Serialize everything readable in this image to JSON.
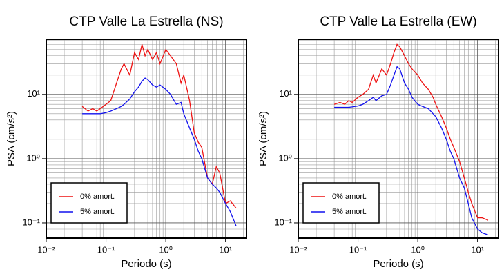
{
  "chart_data": [
    {
      "type": "line",
      "title": "CTP Valle La Estrella (NS)",
      "x_label": "Periodo (s)",
      "y_label": "PSA (cm/s²)",
      "xscale": "log",
      "yscale": "log",
      "grid": true,
      "minor_grid": true,
      "legend": "lower left",
      "xlim": [
        0.01,
        22.4
      ],
      "ylim": [
        0.058,
        72
      ],
      "xticks": [
        {
          "value": 0.01,
          "label": "10⁻²"
        },
        {
          "value": 0.1,
          "label": "10⁻¹"
        },
        {
          "value": 1,
          "label": "10⁰"
        },
        {
          "value": 10,
          "label": "10¹"
        }
      ],
      "yticks": [
        {
          "value": 0.1,
          "label": "10⁻¹"
        },
        {
          "value": 1,
          "label": "10⁰"
        },
        {
          "value": 10,
          "label": "10¹"
        }
      ],
      "x": [
        0.04,
        0.05,
        0.06,
        0.07,
        0.08,
        0.1,
        0.12,
        0.15,
        0.18,
        0.2,
        0.25,
        0.3,
        0.35,
        0.4,
        0.45,
        0.5,
        0.6,
        0.7,
        0.8,
        1,
        1.2,
        1.5,
        1.8,
        2,
        2.5,
        3,
        3.5,
        4,
        5,
        6,
        7,
        8,
        10,
        12,
        15
      ],
      "series": [
        {
          "name": "0% amort.",
          "color": "#ee1111",
          "values": [
            6.5,
            5.5,
            6,
            5.5,
            6,
            7,
            8,
            15,
            25,
            30,
            20,
            45,
            35,
            60,
            40,
            50,
            35,
            45,
            30,
            50,
            40,
            30,
            15,
            20,
            8,
            2.5,
            1.8,
            1.5,
            0.5,
            0.4,
            0.75,
            0.6,
            0.2,
            0.22,
            0.17
          ]
        },
        {
          "name": "5% amort.",
          "color": "#1111ee",
          "values": [
            5,
            5,
            5,
            5,
            5,
            5.2,
            5.5,
            6,
            6.5,
            7,
            8.5,
            11,
            13,
            16,
            18,
            17,
            14,
            13,
            14,
            12,
            10,
            7,
            7.5,
            5,
            3,
            2,
            1.3,
            1,
            0.5,
            0.4,
            0.35,
            0.3,
            0.2,
            0.15,
            0.09
          ]
        }
      ]
    },
    {
      "type": "line",
      "title": "CTP Valle La Estrella (EW)",
      "x_label": "Periodo (s)",
      "y_label": "PSA (cm/s²)",
      "xscale": "log",
      "yscale": "log",
      "grid": true,
      "minor_grid": true,
      "legend": "lower left",
      "xlim": [
        0.01,
        22.4
      ],
      "ylim": [
        0.058,
        72
      ],
      "xticks": [
        {
          "value": 0.01,
          "label": "10⁻²"
        },
        {
          "value": 0.1,
          "label": "10⁻¹"
        },
        {
          "value": 1,
          "label": "10⁰"
        },
        {
          "value": 10,
          "label": "10¹"
        }
      ],
      "yticks": [
        {
          "value": 0.1,
          "label": "10⁻¹"
        },
        {
          "value": 1,
          "label": "10⁰"
        },
        {
          "value": 10,
          "label": "10¹"
        }
      ],
      "x": [
        0.04,
        0.05,
        0.06,
        0.07,
        0.08,
        0.1,
        0.12,
        0.15,
        0.18,
        0.2,
        0.25,
        0.3,
        0.35,
        0.4,
        0.45,
        0.5,
        0.6,
        0.7,
        0.8,
        1,
        1.2,
        1.5,
        1.8,
        2,
        2.5,
        3,
        3.5,
        4,
        5,
        6,
        7,
        8,
        10,
        12,
        15
      ],
      "series": [
        {
          "name": "0% amort.",
          "color": "#ee1111",
          "values": [
            7,
            7.5,
            7,
            8,
            7.5,
            9,
            10,
            12,
            20,
            15,
            25,
            20,
            30,
            45,
            60,
            55,
            40,
            30,
            25,
            20,
            15,
            12,
            9,
            7,
            4.5,
            3,
            2,
            1.5,
            0.9,
            0.5,
            0.3,
            0.2,
            0.12,
            0.12,
            0.11
          ]
        },
        {
          "name": "5% amort.",
          "color": "#1111ee",
          "values": [
            6.3,
            6.3,
            6.3,
            6.3,
            6.4,
            6.6,
            7,
            8,
            9,
            8,
            9.5,
            10,
            14,
            20,
            27,
            25,
            15,
            12,
            9,
            7,
            6.5,
            6,
            5,
            4.5,
            3,
            2,
            1.3,
            1,
            0.5,
            0.35,
            0.2,
            0.12,
            0.08,
            0.07,
            0.065
          ]
        }
      ]
    }
  ]
}
